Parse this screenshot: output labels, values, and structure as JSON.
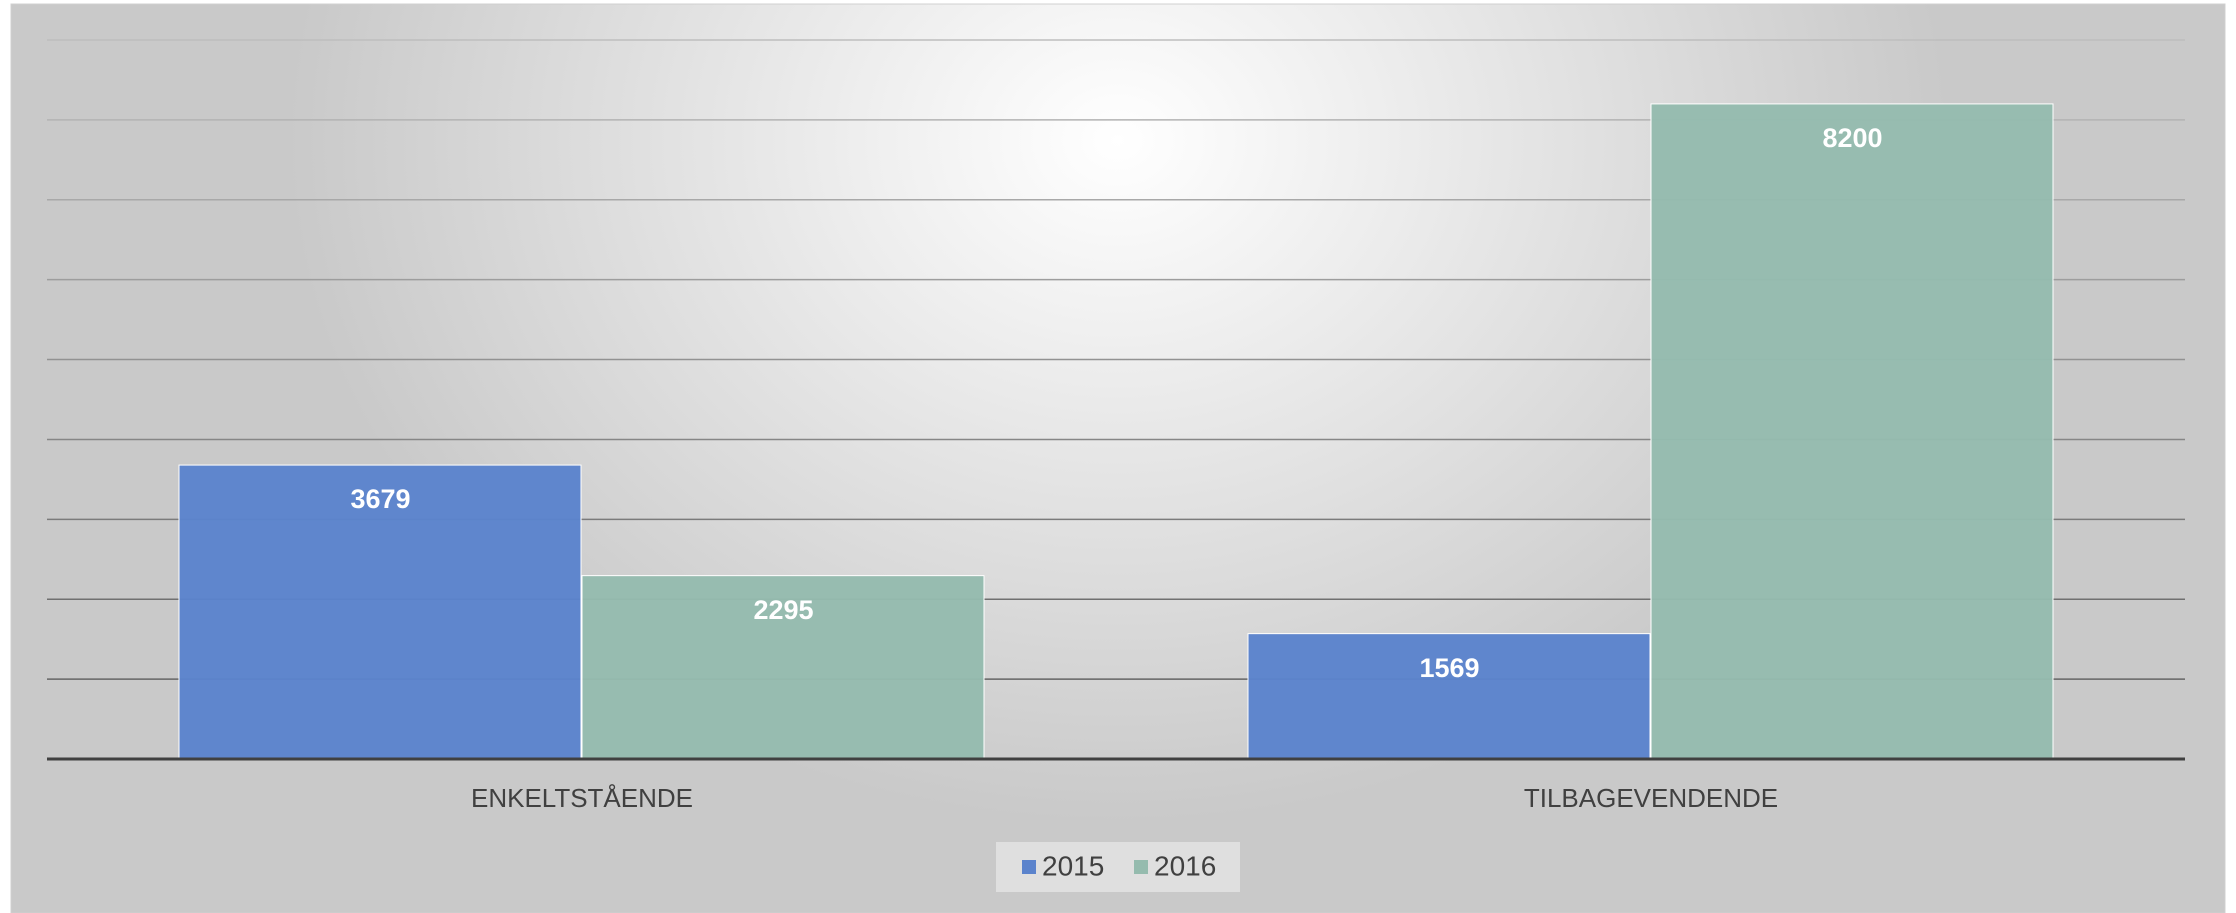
{
  "chart_data": {
    "type": "bar",
    "categories": [
      "ENKELTSTÅENDE",
      "TILBAGEVENDENDE"
    ],
    "series": [
      {
        "name": "2015",
        "color": "#5b83cc",
        "values": [
          3679,
          1569
        ]
      },
      {
        "name": "2016",
        "color": "#95bbae",
        "values": [
          2295,
          8200
        ]
      }
    ],
    "ylim": [
      0,
      9000
    ],
    "yticks": [
      0,
      1000,
      2000,
      3000,
      4000,
      5000,
      6000,
      7000,
      8000,
      9000
    ],
    "grid": true,
    "legend": "bottom"
  }
}
